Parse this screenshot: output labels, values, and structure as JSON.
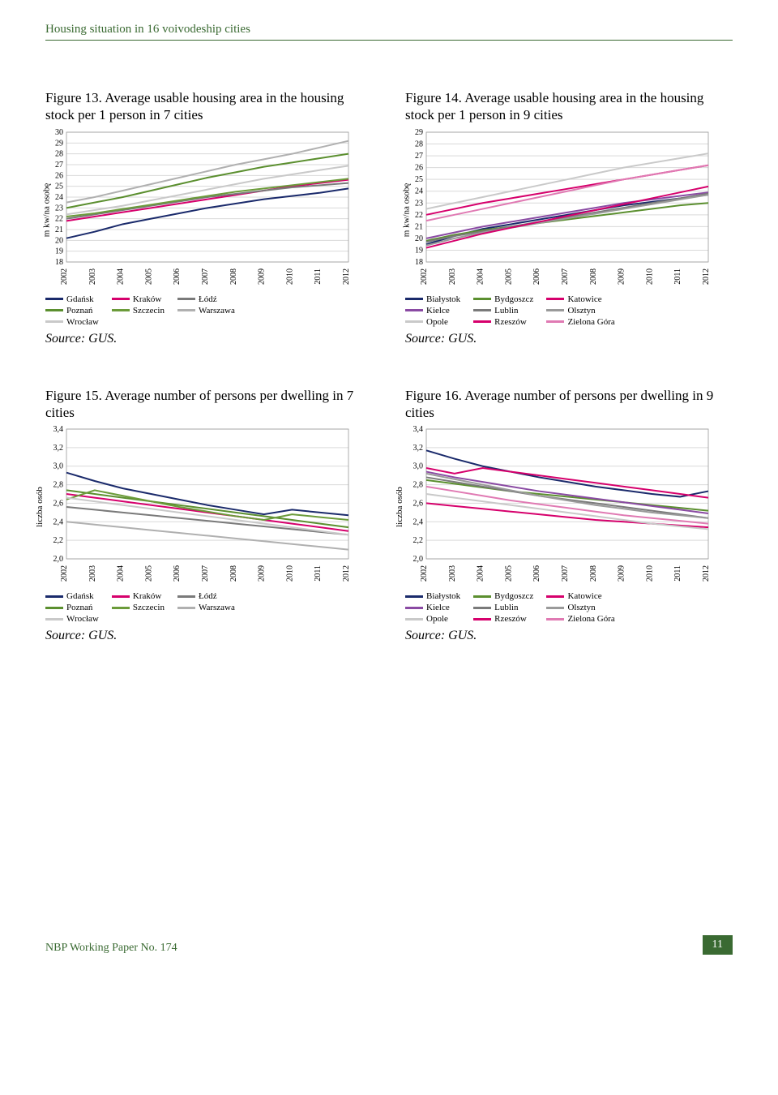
{
  "header": "Housing situation in 16 voivodeship cities",
  "footer": {
    "left": "NBP Working Paper No. 174",
    "page": "11"
  },
  "source_label": "Source: GUS.",
  "years": [
    "2002",
    "2003",
    "2004",
    "2005",
    "2006",
    "2007",
    "2008",
    "2009",
    "2010",
    "2011",
    "2012"
  ],
  "palette7": {
    "Gdańsk": "#1a2a6b",
    "Kraków": "#d6006c",
    "Łódź": "#7a7a7a",
    "Poznań": "#5b8f2f",
    "Szczecin": "#6b9b3a",
    "Warszawa": "#b0b0b0",
    "Wrocław": "#c9c9c9"
  },
  "palette9": {
    "Białystok": "#1a2a6b",
    "Bydgoszcz": "#5b8f2f",
    "Katowice": "#d6006c",
    "Kielce": "#8a4aa3",
    "Lublin": "#7a7a7a",
    "Olsztyn": "#9a9a9a",
    "Opole": "#c9c9c9",
    "Rzeszów": "#d6006c",
    "Zielona Góra": "#e07ab3"
  },
  "legend_order7": [
    [
      "Gdańsk",
      "Poznań",
      "Wrocław"
    ],
    [
      "Kraków",
      "Szczecin"
    ],
    [
      "Łódź",
      "Warszawa"
    ]
  ],
  "legend_order9": [
    [
      "Białystok",
      "Kielce",
      "Opole"
    ],
    [
      "Bydgoszcz",
      "Lublin",
      "Rzeszów"
    ],
    [
      "Katowice",
      "Olsztyn",
      "Zielona Góra"
    ]
  ],
  "fig13": {
    "title": "Figure 13. Average usable housing area in the housing stock per 1 person in 7 cities",
    "ylabel": "m kw/na osobę",
    "ymin": 18,
    "ymax": 30,
    "ystep": 1,
    "series": {
      "Gdańsk": [
        20.2,
        20.8,
        21.5,
        22.0,
        22.5,
        23.0,
        23.4,
        23.8,
        24.1,
        24.4,
        24.8
      ],
      "Kraków": [
        21.8,
        22.2,
        22.6,
        23.0,
        23.4,
        23.8,
        24.2,
        24.6,
        25.0,
        25.3,
        25.6
      ],
      "Łódź": [
        22.0,
        22.4,
        22.8,
        23.2,
        23.6,
        24.0,
        24.3,
        24.6,
        24.9,
        25.1,
        25.3
      ],
      "Poznań": [
        23.0,
        23.5,
        24.0,
        24.6,
        25.2,
        25.8,
        26.3,
        26.8,
        27.2,
        27.6,
        28.0
      ],
      "Szczecin": [
        22.2,
        22.5,
        22.9,
        23.3,
        23.7,
        24.1,
        24.5,
        24.8,
        25.1,
        25.4,
        25.7
      ],
      "Warszawa": [
        23.5,
        24.0,
        24.6,
        25.2,
        25.8,
        26.4,
        27.0,
        27.5,
        28.0,
        28.6,
        29.2
      ],
      "Wrocław": [
        22.4,
        22.8,
        23.2,
        23.7,
        24.2,
        24.7,
        25.2,
        25.7,
        26.1,
        26.5,
        26.9
      ]
    }
  },
  "fig14": {
    "title": "Figure 14. Average usable housing area in the housing stock per 1 person in 9 cities",
    "ylabel": "m kw/na osobę",
    "ymin": 18,
    "ymax": 29,
    "ystep": 1,
    "series": {
      "Białystok": [
        19.5,
        20.2,
        20.8,
        21.2,
        21.6,
        22.0,
        22.4,
        22.8,
        23.1,
        23.4,
        23.7
      ],
      "Bydgoszcz": [
        19.8,
        20.3,
        20.7,
        21.0,
        21.3,
        21.6,
        21.9,
        22.2,
        22.5,
        22.8,
        23.0
      ],
      "Katowice": [
        22.0,
        22.5,
        23.0,
        23.4,
        23.8,
        24.2,
        24.6,
        25.0,
        25.4,
        25.8,
        26.2
      ],
      "Kielce": [
        20.0,
        20.5,
        21.0,
        21.4,
        21.8,
        22.2,
        22.6,
        23.0,
        23.3,
        23.6,
        23.9
      ],
      "Lublin": [
        19.7,
        20.2,
        20.6,
        21.0,
        21.4,
        21.8,
        22.2,
        22.6,
        23.0,
        23.4,
        23.8
      ],
      "Olsztyn": [
        19.4,
        20.0,
        20.5,
        20.9,
        21.3,
        21.7,
        22.1,
        22.5,
        22.9,
        23.3,
        23.7
      ],
      "Opole": [
        22.5,
        23.0,
        23.5,
        24.0,
        24.5,
        25.0,
        25.5,
        26.0,
        26.4,
        26.8,
        27.2
      ],
      "Rzeszów": [
        19.2,
        19.8,
        20.4,
        20.9,
        21.4,
        21.9,
        22.4,
        22.9,
        23.4,
        23.9,
        24.4
      ],
      "Zielona Góra": [
        21.5,
        22.0,
        22.5,
        23.0,
        23.5,
        24.0,
        24.5,
        25.0,
        25.4,
        25.8,
        26.2
      ]
    }
  },
  "fig15": {
    "title": "Figure 15. Average number of persons per dwelling in 7 cities",
    "ylabel": "liczba osób",
    "ymin": 2.0,
    "ymax": 3.4,
    "ystep": 0.2,
    "ytick_fmt": "comma1",
    "series": {
      "Gdańsk": [
        2.93,
        2.84,
        2.76,
        2.7,
        2.64,
        2.58,
        2.53,
        2.48,
        2.53,
        2.5,
        2.47
      ],
      "Kraków": [
        2.7,
        2.66,
        2.62,
        2.58,
        2.54,
        2.5,
        2.46,
        2.42,
        2.38,
        2.34,
        2.3
      ],
      "Łódź": [
        2.56,
        2.53,
        2.5,
        2.47,
        2.44,
        2.41,
        2.38,
        2.35,
        2.32,
        2.29,
        2.26
      ],
      "Poznań": [
        2.74,
        2.7,
        2.66,
        2.62,
        2.58,
        2.54,
        2.5,
        2.46,
        2.42,
        2.38,
        2.34
      ],
      "Szczecin": [
        2.64,
        2.74,
        2.68,
        2.62,
        2.56,
        2.51,
        2.46,
        2.42,
        2.48,
        2.45,
        2.42
      ],
      "Warszawa": [
        2.4,
        2.37,
        2.34,
        2.31,
        2.28,
        2.25,
        2.22,
        2.19,
        2.16,
        2.13,
        2.1
      ],
      "Wrocław": [
        2.66,
        2.62,
        2.58,
        2.54,
        2.5,
        2.46,
        2.42,
        2.38,
        2.34,
        2.3,
        2.26
      ]
    }
  },
  "fig16": {
    "title": "Figure 16. Average number of persons per dwelling in 9 cities",
    "ylabel": "liczba osób",
    "ymin": 2.0,
    "ymax": 3.4,
    "ystep": 0.2,
    "ytick_fmt": "comma1",
    "series": {
      "Białystok": [
        3.17,
        3.08,
        3.0,
        2.94,
        2.88,
        2.83,
        2.78,
        2.74,
        2.7,
        2.67,
        2.73
      ],
      "Bydgoszcz": [
        2.85,
        2.81,
        2.77,
        2.73,
        2.7,
        2.67,
        2.64,
        2.61,
        2.58,
        2.55,
        2.52
      ],
      "Katowice": [
        2.6,
        2.57,
        2.54,
        2.51,
        2.48,
        2.45,
        2.42,
        2.4,
        2.38,
        2.36,
        2.34
      ],
      "Kielce": [
        2.94,
        2.88,
        2.83,
        2.78,
        2.73,
        2.69,
        2.65,
        2.61,
        2.57,
        2.53,
        2.49
      ],
      "Lublin": [
        2.88,
        2.83,
        2.78,
        2.73,
        2.68,
        2.64,
        2.6,
        2.56,
        2.52,
        2.48,
        2.44
      ],
      "Olsztyn": [
        2.92,
        2.86,
        2.8,
        2.74,
        2.68,
        2.63,
        2.58,
        2.54,
        2.5,
        2.47,
        2.44
      ],
      "Opole": [
        2.7,
        2.66,
        2.62,
        2.58,
        2.54,
        2.5,
        2.46,
        2.42,
        2.38,
        2.35,
        2.32
      ],
      "Rzeszów": [
        2.98,
        2.92,
        2.98,
        2.94,
        2.9,
        2.86,
        2.82,
        2.78,
        2.74,
        2.7,
        2.66
      ],
      "Zielona Góra": [
        2.78,
        2.73,
        2.68,
        2.63,
        2.59,
        2.55,
        2.51,
        2.47,
        2.44,
        2.41,
        2.38
      ]
    }
  }
}
